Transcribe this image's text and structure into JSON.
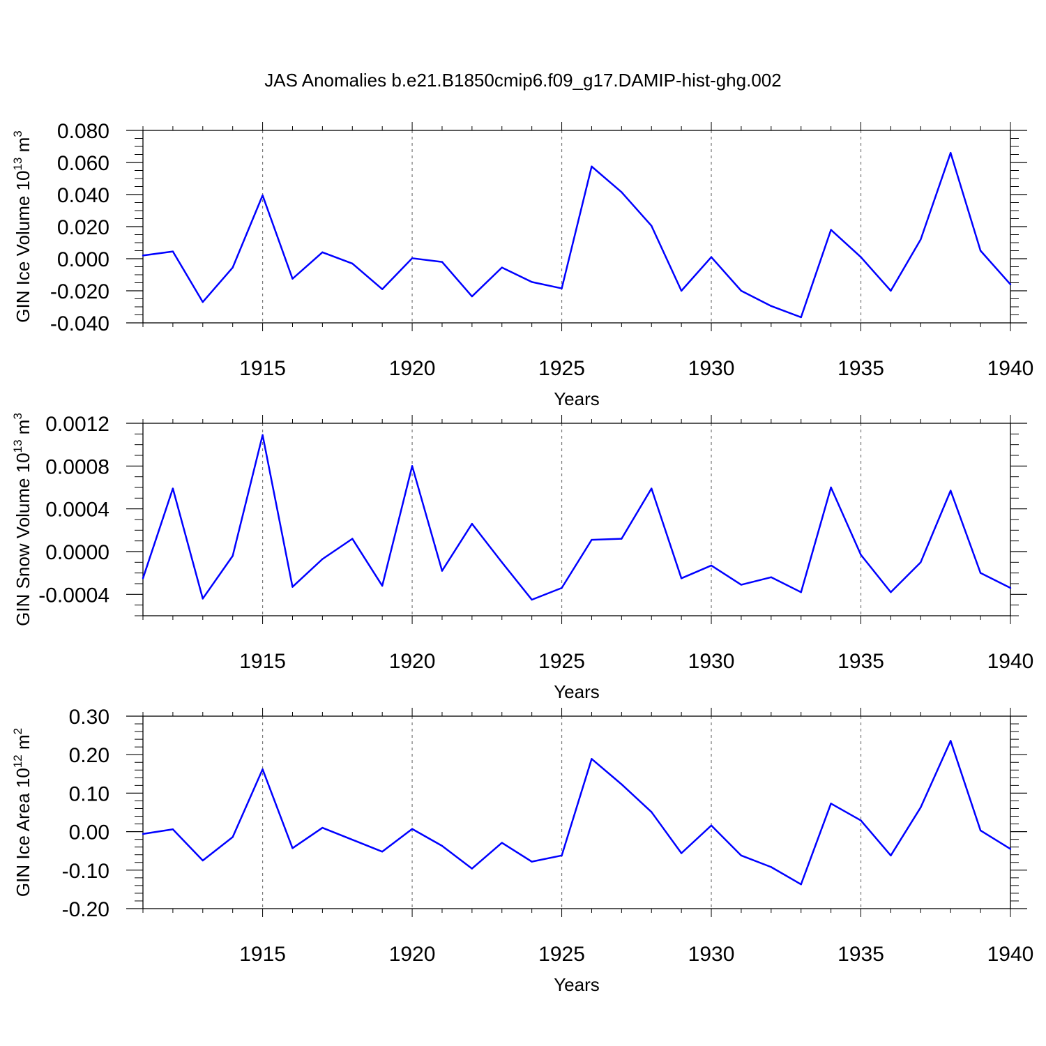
{
  "figure": {
    "title": "JAS Anomalies b.e21.B1850cmip6.f09_g17.DAMIP-hist-ghg.002",
    "line_color": "#0000ff"
  },
  "chart_data": [
    {
      "type": "line",
      "title": "",
      "xlabel": "Years",
      "ylabel_main": "GIN Ice Volume 10",
      "ylabel_exp": "13",
      "ylabel_unit": " m",
      "ylabel_unit_exp": "3",
      "xlim": [
        1911,
        1940
      ],
      "ylim": [
        -0.04,
        0.08
      ],
      "x_ticks": [
        1915,
        1920,
        1925,
        1930,
        1935,
        1940
      ],
      "x_tick_labels": [
        "1915",
        "1920",
        "1925",
        "1930",
        "1935",
        "1940"
      ],
      "y_ticks": [
        -0.04,
        -0.02,
        0.0,
        0.02,
        0.04,
        0.06,
        0.08
      ],
      "y_tick_labels": [
        "-0.040",
        "-0.020",
        "0.000",
        "0.020",
        "0.040",
        "0.060",
        "0.080"
      ],
      "y_minor_step": 0.005,
      "grid": "vertical-dashed",
      "series": [
        {
          "name": "GIN Ice Volume",
          "x": [
            1911,
            1912,
            1913,
            1914,
            1915,
            1916,
            1917,
            1918,
            1919,
            1920,
            1921,
            1922,
            1923,
            1924,
            1925,
            1926,
            1927,
            1928,
            1929,
            1930,
            1931,
            1932,
            1933,
            1934,
            1935,
            1936,
            1937,
            1938,
            1939,
            1940
          ],
          "values": [
            0.002,
            0.0045,
            -0.027,
            -0.0055,
            0.0395,
            -0.0125,
            0.004,
            -0.003,
            -0.019,
            0.0003,
            -0.002,
            -0.0235,
            -0.0055,
            -0.0145,
            -0.0185,
            0.0575,
            0.0415,
            0.0205,
            -0.02,
            0.001,
            -0.02,
            -0.0295,
            -0.0365,
            0.018,
            0.001,
            -0.02,
            0.012,
            0.066,
            0.005,
            -0.016
          ]
        }
      ]
    },
    {
      "type": "line",
      "title": "",
      "xlabel": "Years",
      "ylabel_main": "GIN Snow Volume 10",
      "ylabel_exp": "13",
      "ylabel_unit": " m",
      "ylabel_unit_exp": "3",
      "xlim": [
        1911,
        1940
      ],
      "ylim": [
        -0.0006,
        0.0012
      ],
      "x_ticks": [
        1915,
        1920,
        1925,
        1930,
        1935,
        1940
      ],
      "x_tick_labels": [
        "1915",
        "1920",
        "1925",
        "1930",
        "1935",
        "1940"
      ],
      "y_ticks": [
        -0.0004,
        0.0,
        0.0004,
        0.0008,
        0.0012
      ],
      "y_tick_labels": [
        "-0.0004",
        "0.0000",
        "0.0004",
        "0.0008",
        "0.0012"
      ],
      "y_minor_step": 0.0001,
      "grid": "vertical-dashed",
      "series": [
        {
          "name": "GIN Snow Volume",
          "x": [
            1911,
            1912,
            1913,
            1914,
            1915,
            1916,
            1917,
            1918,
            1919,
            1920,
            1921,
            1922,
            1923,
            1924,
            1925,
            1926,
            1927,
            1928,
            1929,
            1930,
            1931,
            1932,
            1933,
            1934,
            1935,
            1936,
            1937,
            1938,
            1939,
            1940
          ],
          "values": [
            -0.00025,
            0.00059,
            -0.00044,
            -4e-05,
            0.00109,
            -0.00033,
            -7e-05,
            0.00012,
            -0.00032,
            0.0008,
            -0.00018,
            0.00026,
            -0.0001,
            -0.00045,
            -0.00034,
            0.00011,
            0.00012,
            0.00059,
            -0.00025,
            -0.00013,
            -0.00031,
            -0.00024,
            -0.00038,
            0.0006,
            -3e-05,
            -0.00038,
            -0.0001,
            0.00057,
            -0.0002,
            -0.00034
          ]
        }
      ]
    },
    {
      "type": "line",
      "title": "",
      "xlabel": "Years",
      "ylabel_main": "GIN Ice Area 10",
      "ylabel_exp": "12",
      "ylabel_unit": " m",
      "ylabel_unit_exp": "2",
      "xlim": [
        1911,
        1940
      ],
      "ylim": [
        -0.2,
        0.3
      ],
      "x_ticks": [
        1915,
        1920,
        1925,
        1930,
        1935,
        1940
      ],
      "x_tick_labels": [
        "1915",
        "1920",
        "1925",
        "1930",
        "1935",
        "1940"
      ],
      "y_ticks": [
        -0.2,
        -0.1,
        0.0,
        0.1,
        0.2,
        0.3
      ],
      "y_tick_labels": [
        "-0.20",
        "-0.10",
        "0.00",
        "0.10",
        "0.20",
        "0.30"
      ],
      "y_minor_step": 0.02,
      "grid": "vertical-dashed",
      "series": [
        {
          "name": "GIN Ice Area",
          "x": [
            1911,
            1912,
            1913,
            1914,
            1915,
            1916,
            1917,
            1918,
            1919,
            1920,
            1921,
            1922,
            1923,
            1924,
            1925,
            1926,
            1927,
            1928,
            1929,
            1930,
            1931,
            1932,
            1933,
            1934,
            1935,
            1936,
            1937,
            1938,
            1939,
            1940
          ],
          "values": [
            -0.006,
            0.006,
            -0.075,
            -0.014,
            0.162,
            -0.043,
            0.01,
            -0.021,
            -0.052,
            0.007,
            -0.037,
            -0.096,
            -0.029,
            -0.078,
            -0.062,
            0.189,
            0.123,
            0.051,
            -0.056,
            0.016,
            -0.062,
            -0.092,
            -0.137,
            0.073,
            0.029,
            -0.062,
            0.063,
            0.236,
            0.003,
            -0.045
          ]
        }
      ]
    }
  ]
}
